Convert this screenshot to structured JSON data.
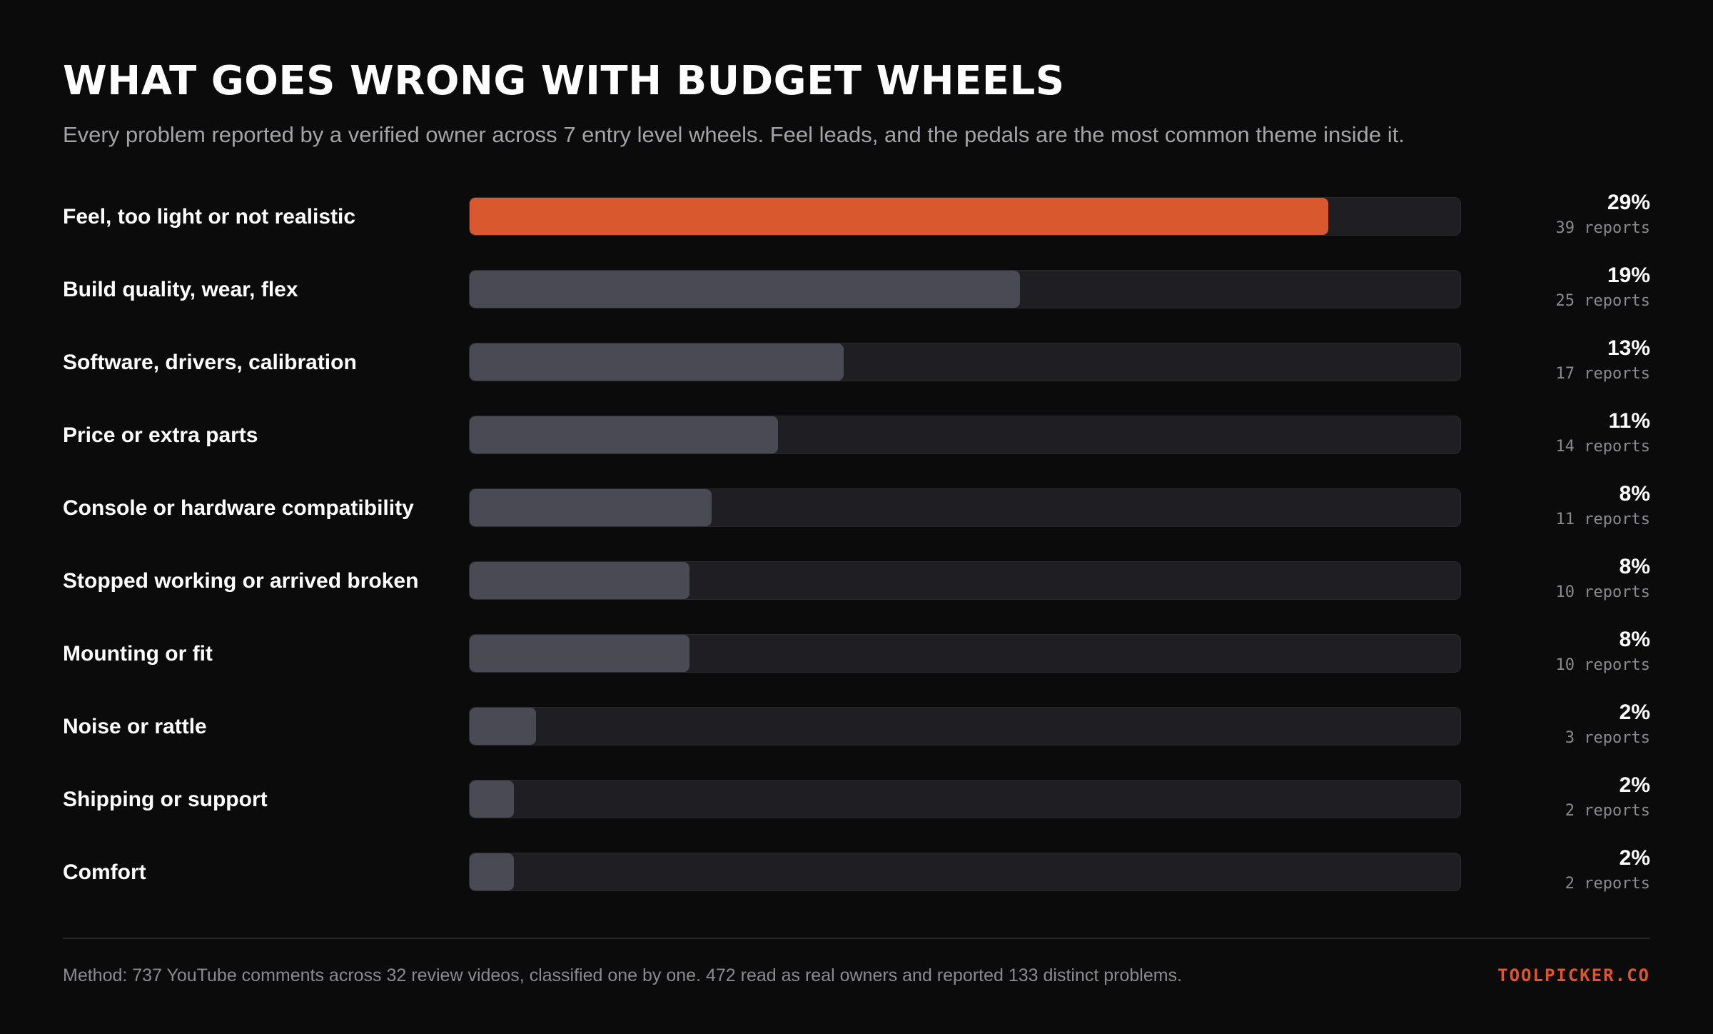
{
  "title": "WHAT GOES WRONG WITH BUDGET WHEELS",
  "subtitle": "Every problem reported by a verified owner across 7 entry level wheels. Feel leads, and the pedals are the most common theme inside it.",
  "colors": {
    "accent": "#d9582e",
    "bar": "#4a4a55",
    "track": "#1f1f23",
    "background": "#0b0b0c"
  },
  "chart_data": {
    "type": "bar",
    "orientation": "horizontal",
    "categories": [
      "Feel, too light or not realistic",
      "Build quality, wear, flex",
      "Software, drivers, calibration",
      "Price or extra parts",
      "Console or hardware compatibility",
      "Stopped working or arrived broken",
      "Mounting or fit",
      "Noise or rattle",
      "Shipping or support",
      "Comfort"
    ],
    "values": [
      39,
      25,
      17,
      14,
      11,
      10,
      10,
      3,
      2,
      2
    ],
    "percent_labels": [
      "29%",
      "19%",
      "13%",
      "11%",
      "8%",
      "8%",
      "8%",
      "2%",
      "2%",
      "2%"
    ],
    "count_labels": [
      "39 reports",
      "25 reports",
      "17 reports",
      "14 reports",
      "11 reports",
      "10 reports",
      "10 reports",
      "3 reports",
      "2 reports",
      "2 reports"
    ],
    "highlight_index": 0,
    "xlim": [
      0,
      45
    ],
    "grid": false
  },
  "footer": {
    "method": "Method: 737 YouTube comments across 32 review videos, classified one by one. 472 read as real owners and reported 133 distinct problems.",
    "brand": "TOOLPICKER.CO"
  }
}
